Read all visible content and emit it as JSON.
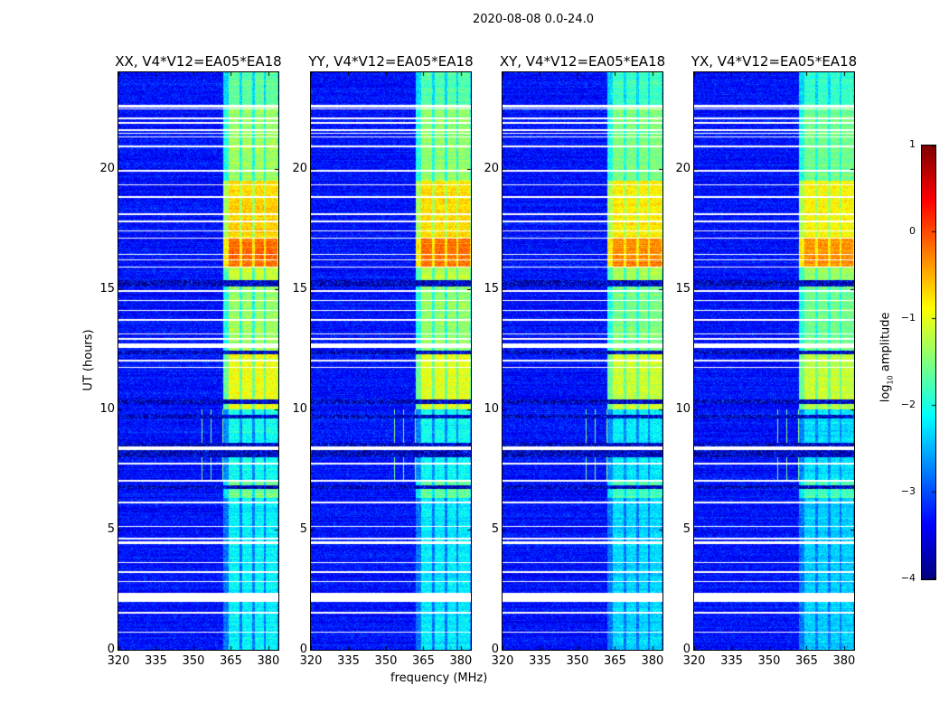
{
  "chart_data": {
    "type": "heatmap",
    "suptitle": "2020-08-08 0.0-24.0",
    "xlabel": "frequency (MHz)",
    "ylabel": "UT (hours)",
    "xlim": [
      320,
      384
    ],
    "ylim": [
      0,
      24
    ],
    "xticks": [
      "320",
      "335",
      "350",
      "365",
      "380"
    ],
    "xtick_values": [
      320,
      335,
      350,
      365,
      380
    ],
    "yticks": [
      "0",
      "5",
      "10",
      "15",
      "20"
    ],
    "ytick_values": [
      0,
      5,
      10,
      15,
      20
    ],
    "panels": [
      {
        "title": "XX, V4*V12=EA05*EA18",
        "level_offset": 0.15
      },
      {
        "title": "YY, V4*V12=EA05*EA18",
        "level_offset": 0.1
      },
      {
        "title": "XY, V4*V12=EA05*EA18",
        "level_offset": 0.0
      },
      {
        "title": "YX, V4*V12=EA05*EA18",
        "level_offset": -0.05
      }
    ],
    "background_log10_amplitude": -3.3,
    "rfi_band_mhz": [
      [
        364,
        368.5
      ],
      [
        369.5,
        373.5
      ],
      [
        374.5,
        378.2
      ],
      [
        379,
        383.5
      ]
    ],
    "rfi_time_profile": [
      {
        "from": 0,
        "to": 6.3,
        "log10_amplitude": -2.3
      },
      {
        "from": 6.3,
        "to": 7.0,
        "log10_amplitude": -1.7
      },
      {
        "from": 7.0,
        "to": 10.0,
        "log10_amplitude": -2.2
      },
      {
        "from": 10.0,
        "to": 12.3,
        "log10_amplitude": -1.1
      },
      {
        "from": 12.3,
        "to": 15.2,
        "log10_amplitude": -1.5
      },
      {
        "from": 15.2,
        "to": 15.9,
        "log10_amplitude": -1.3
      },
      {
        "from": 15.9,
        "to": 17.1,
        "log10_amplitude": -0.3
      },
      {
        "from": 17.1,
        "to": 19.5,
        "log10_amplitude": -0.8
      },
      {
        "from": 19.5,
        "to": 22.6,
        "log10_amplitude": -1.5
      },
      {
        "from": 22.6,
        "to": 24,
        "log10_amplitude": -1.8
      }
    ],
    "spike_rfi": {
      "freq_range_mhz": [
        350,
        364
      ],
      "time_range_hours": [
        7.0,
        10.0
      ]
    },
    "flagged_white_hours": [
      [
        22.55,
        22.65
      ],
      [
        22.45,
        22.5
      ],
      [
        22.05,
        22.12
      ],
      [
        21.85,
        21.92
      ],
      [
        21.55,
        21.62
      ],
      [
        21.45,
        21.5
      ],
      [
        21.28,
        21.33
      ],
      [
        20.88,
        20.94
      ],
      [
        19.88,
        19.94
      ],
      [
        19.3,
        19.36
      ],
      [
        18.78,
        18.84
      ],
      [
        18.08,
        18.14
      ],
      [
        17.78,
        17.84
      ],
      [
        17.38,
        17.44
      ],
      [
        17.08,
        17.14
      ],
      [
        16.4,
        16.46
      ],
      [
        16.18,
        16.24
      ],
      [
        15.88,
        15.94
      ],
      [
        14.88,
        14.94
      ],
      [
        14.48,
        14.54
      ],
      [
        14.08,
        14.14
      ],
      [
        13.68,
        13.74
      ],
      [
        13.1,
        13.16
      ],
      [
        12.88,
        12.94
      ],
      [
        12.55,
        12.72
      ],
      [
        12.0,
        12.06
      ],
      [
        11.7,
        11.76
      ],
      [
        8.3,
        8.45
      ],
      [
        7.7,
        7.76
      ],
      [
        6.98,
        7.06
      ],
      [
        6.1,
        6.16
      ],
      [
        5.1,
        5.16
      ],
      [
        4.6,
        4.66
      ],
      [
        4.38,
        4.5
      ],
      [
        3.6,
        3.66
      ],
      [
        3.2,
        3.26
      ],
      [
        2.8,
        2.86
      ],
      [
        2.0,
        2.35
      ],
      [
        1.5,
        1.56
      ],
      [
        0.7,
        0.76
      ]
    ],
    "flagged_dark_hours": [
      [
        15.1,
        15.35
      ],
      [
        12.3,
        12.45
      ],
      [
        10.2,
        10.4
      ],
      [
        9.6,
        9.75
      ],
      [
        8.0,
        8.6
      ],
      [
        6.7,
        6.85
      ]
    ],
    "colorbar": {
      "label": "log10 amplitude",
      "range": [
        -4,
        1
      ],
      "ticks": [
        "1",
        "0",
        "−1",
        "−2",
        "−3",
        "−4"
      ],
      "tick_values": [
        1,
        0,
        -1,
        -2,
        -3,
        -4
      ],
      "colormap": "jet"
    }
  }
}
